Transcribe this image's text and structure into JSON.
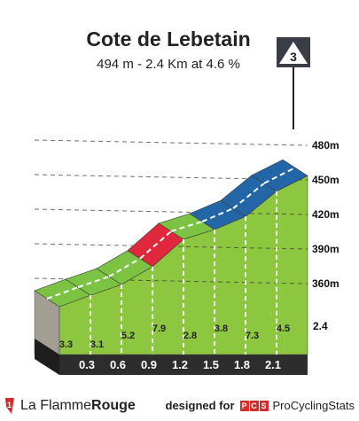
{
  "climb": {
    "title": "Cote de Lebetain",
    "subtitle": "494 m - 2.4 Km at 4.6 %",
    "category": "3",
    "total_distance_label": "2.4"
  },
  "chart_data": {
    "type": "area",
    "title": "Cote de Lebetain",
    "subtitle": "494 m - 2.4 Km at 4.6 %",
    "xlabel": "",
    "ylabel": "",
    "x_unit": "km",
    "y_unit": "m",
    "xlim": [
      0,
      2.4
    ],
    "ylim": [
      340,
      494
    ],
    "y_ticks": [
      360,
      390,
      420,
      450,
      480
    ],
    "y_tick_labels": [
      "360m",
      "390m",
      "420m",
      "450m",
      "480m"
    ],
    "x_markers": [
      0.3,
      0.6,
      0.9,
      1.2,
      1.5,
      1.8,
      2.1
    ],
    "x_marker_labels": [
      "0.3",
      "0.6",
      "0.9",
      "1.2",
      "1.5",
      "1.8",
      "2.1"
    ],
    "segments": [
      {
        "from_km": 0.0,
        "to_km": 0.3,
        "gradient": 3.3,
        "label": "3.3",
        "color": "#7cc243"
      },
      {
        "from_km": 0.3,
        "to_km": 0.6,
        "gradient": 3.1,
        "label": "3.1",
        "color": "#7cc243"
      },
      {
        "from_km": 0.6,
        "to_km": 0.9,
        "gradient": 5.2,
        "label": "5.2",
        "color": "#7cc243"
      },
      {
        "from_km": 0.9,
        "to_km": 1.2,
        "gradient": 7.9,
        "label": "7.9",
        "color": "#e0283c"
      },
      {
        "from_km": 1.2,
        "to_km": 1.5,
        "gradient": 2.8,
        "label": "2.8",
        "color": "#7cc243"
      },
      {
        "from_km": 1.5,
        "to_km": 1.8,
        "gradient": 3.8,
        "label": "3.8",
        "color": "#2266a8"
      },
      {
        "from_km": 1.8,
        "to_km": 2.1,
        "gradient": 7.3,
        "label": "7.3",
        "color": "#2266a8"
      },
      {
        "from_km": 2.1,
        "to_km": 2.4,
        "gradient": 4.5,
        "label": "4.5",
        "color": "#2266a8"
      }
    ],
    "grid": true,
    "legend": "none"
  },
  "footer": {
    "brand_regular": "La Flamme",
    "brand_bold": "Rouge",
    "credit_prefix": "designed for",
    "pcs_letters": [
      "P",
      "C",
      "S"
    ],
    "credit_name": "ProCyclingStats"
  },
  "colors": {
    "body_green": "#8dc63f",
    "side_fill": "#a39e92",
    "base_dark": "#2d2d2d",
    "gradient_easy": "#7cc243",
    "gradient_hard": "#e0283c",
    "gradient_finish": "#2266a8"
  },
  "icons": {
    "category_badge": "triangle-badge-icon",
    "brand": "flame-logo-icon"
  }
}
